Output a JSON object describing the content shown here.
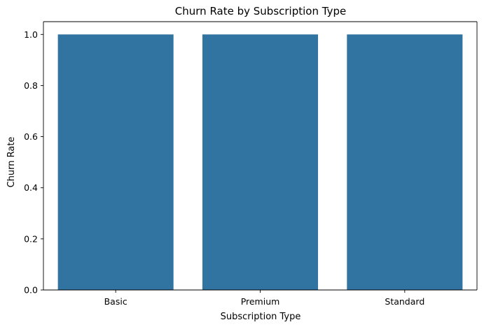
{
  "chart_data": {
    "type": "bar",
    "title": "Churn Rate by Subscription Type",
    "xlabel": "Subscription Type",
    "ylabel": "Churn Rate",
    "categories": [
      "Basic",
      "Premium",
      "Standard"
    ],
    "values": [
      1.0,
      1.0,
      1.0
    ],
    "ylim": [
      0,
      1.05
    ],
    "yticks": [
      "0.0",
      "0.2",
      "0.4",
      "0.6",
      "0.8",
      "1.0"
    ],
    "grid": false,
    "bar_color": "#3274a1"
  }
}
